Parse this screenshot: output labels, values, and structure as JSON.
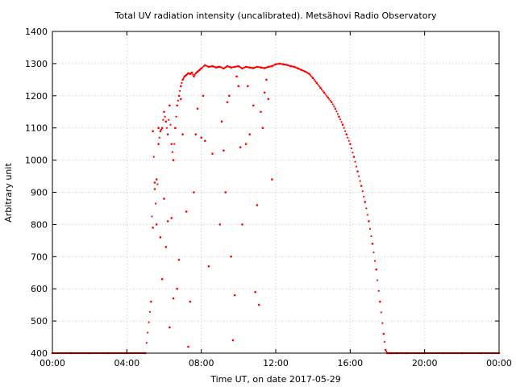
{
  "chart_data": {
    "type": "scatter",
    "title": "Total UV radiation intensity (uncalibrated). Metsähovi Radio Observatory",
    "xlabel": "Time UT, on date 2017-05-29",
    "ylabel": "Arbitrary unit",
    "xlim": [
      0,
      24
    ],
    "ylim": [
      400,
      1400
    ],
    "x_ticks": [
      0,
      4,
      8,
      12,
      16,
      20,
      24
    ],
    "x_tick_labels": [
      "00:00",
      "04:00",
      "08:00",
      "12:00",
      "16:00",
      "20:00",
      "00:00"
    ],
    "y_ticks": [
      400,
      500,
      600,
      700,
      800,
      900,
      1000,
      1100,
      1200,
      1300,
      1400
    ],
    "y_tick_labels": [
      "400",
      "500",
      "600",
      "700",
      "800",
      "900",
      "1000",
      "1100",
      "1200",
      "1300",
      "1400"
    ],
    "grid": true,
    "marker_color": "#ff0000",
    "series": [
      {
        "x": [
          0,
          1,
          2,
          3,
          4,
          5,
          5.3,
          5.4,
          5.5,
          5.6,
          5.7,
          5.8,
          5.9,
          6.0,
          6.1,
          6.2,
          6.3,
          6.4,
          6.5,
          6.6,
          6.7,
          6.8,
          6.9,
          7.0,
          7.1,
          7.2,
          7.3,
          7.4,
          7.5,
          7.6,
          7.7,
          7.8,
          7.9,
          8.0,
          8.2,
          8.4,
          8.6,
          8.8,
          9.0,
          9.2,
          9.4,
          9.6,
          9.8,
          10.0,
          10.2,
          10.4,
          10.6,
          10.8,
          11.0,
          11.2,
          11.4,
          11.6,
          11.8,
          12.0,
          12.2,
          12.4,
          12.6,
          12.8,
          13.0,
          13.2,
          13.4,
          13.6,
          13.8,
          14.0,
          14.2,
          14.4,
          14.6,
          14.8,
          15.0,
          15.2,
          15.4,
          15.6,
          15.8,
          16.0,
          16.2,
          16.4,
          16.6,
          16.8,
          17.0,
          17.2,
          17.4,
          17.6,
          17.8,
          17.9,
          18.0,
          18.1,
          18.2,
          18.3,
          18.5,
          19,
          20,
          21,
          22,
          23,
          24
        ],
        "y": [
          400,
          400,
          400,
          400,
          400,
          400,
          560,
          1090,
          930,
          800,
          1050,
          1090,
          1100,
          1150,
          1120,
          1080,
          1170,
          1050,
          1000,
          1100,
          1170,
          1200,
          1230,
          1250,
          1260,
          1265,
          1270,
          1268,
          1272,
          1260,
          1270,
          1275,
          1280,
          1285,
          1295,
          1290,
          1292,
          1288,
          1290,
          1285,
          1292,
          1288,
          1290,
          1292,
          1285,
          1290,
          1288,
          1286,
          1290,
          1288,
          1286,
          1290,
          1292,
          1298,
          1300,
          1298,
          1296,
          1292,
          1290,
          1285,
          1280,
          1275,
          1268,
          1255,
          1240,
          1225,
          1210,
          1195,
          1180,
          1160,
          1135,
          1110,
          1080,
          1050,
          1010,
          965,
          920,
          870,
          810,
          740,
          660,
          560,
          460,
          410,
          400,
          400,
          400,
          400,
          400,
          400,
          400,
          400,
          400,
          400,
          400
        ]
      }
    ],
    "outliers": {
      "x": [
        5.4,
        5.5,
        5.6,
        5.8,
        5.9,
        6.0,
        6.1,
        6.2,
        6.3,
        6.5,
        6.7,
        6.8,
        7.0,
        7.2,
        7.4,
        7.6,
        7.8,
        8.0,
        8.2,
        8.4,
        8.6,
        9.0,
        9.2,
        9.3,
        9.4,
        9.6,
        9.8,
        10.0,
        10.2,
        10.4,
        10.6,
        10.8,
        11.0,
        11.2,
        11.4,
        11.6,
        11.8,
        9.1,
        9.5,
        9.7,
        10.1,
        10.5,
        10.9,
        11.1,
        11.3,
        7.3,
        8.1,
        7.7,
        6.9,
        6.4,
        5.7,
        8.9,
        9.9,
        11.5
      ],
      "y": [
        790,
        910,
        940,
        760,
        630,
        880,
        730,
        810,
        480,
        570,
        600,
        690,
        1080,
        840,
        560,
        900,
        1160,
        1070,
        1060,
        670,
        1020,
        800,
        1030,
        900,
        1180,
        700,
        580,
        1230,
        800,
        1050,
        1080,
        1170,
        860,
        1150,
        1210,
        1190,
        940,
        1120,
        1200,
        440,
        1040,
        1230,
        590,
        550,
        1100,
        420,
        1200,
        1080,
        1190,
        820,
        1100,
        1290,
        1260,
        1250
      ]
    }
  }
}
